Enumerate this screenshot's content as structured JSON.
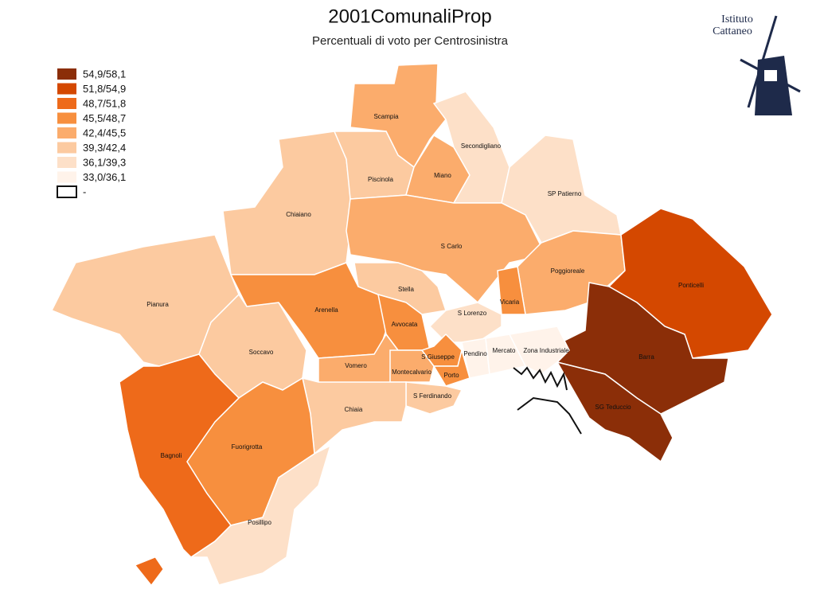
{
  "title": "2001ComunaliProp",
  "subtitle": "Percentuali di voto per Centrosinistra",
  "logo": {
    "line1": "Istituto",
    "line2": "Cattaneo"
  },
  "legend": [
    {
      "label": "54,9/58,1",
      "color": "#8b2e08"
    },
    {
      "label": "51,8/54,9",
      "color": "#d44800"
    },
    {
      "label": "48,7/51,8",
      "color": "#ee6a1a"
    },
    {
      "label": "45,5/48,7",
      "color": "#f78f3e"
    },
    {
      "label": "42,4/45,5",
      "color": "#fbac6c"
    },
    {
      "label": "39,3/42,4",
      "color": "#fccaa0"
    },
    {
      "label": "36,1/39,3",
      "color": "#fde0c8"
    },
    {
      "label": "33,0/36,1",
      "color": "#fff3ea"
    },
    {
      "label": "-",
      "color": "#ffffff"
    }
  ],
  "districts": [
    {
      "label": "Scampia",
      "color": "#fbac6c"
    },
    {
      "label": "Chiaiano",
      "color": "#fccaa0"
    },
    {
      "label": "Piscinola",
      "color": "#fccaa0"
    },
    {
      "label": "Miano",
      "color": "#fbac6c"
    },
    {
      "label": "Secondigliano",
      "color": "#fde0c8"
    },
    {
      "label": "SP Patierno",
      "color": "#fde0c8"
    },
    {
      "label": "S Carlo",
      "color": "#fbac6c"
    },
    {
      "label": "Poggioreale",
      "color": "#fbac6c"
    },
    {
      "label": "Vicaria",
      "color": "#f78f3e"
    },
    {
      "label": "Ponticelli",
      "color": "#d44800"
    },
    {
      "label": "Barra",
      "color": "#8b2e08"
    },
    {
      "label": "SG Teduccio",
      "color": "#8b2e08"
    },
    {
      "label": "Pianura",
      "color": "#fccaa0"
    },
    {
      "label": "Soccavo",
      "color": "#fccaa0"
    },
    {
      "label": "Arenella",
      "color": "#f78f3e"
    },
    {
      "label": "Stella",
      "color": "#fccaa0"
    },
    {
      "label": "Avvocata",
      "color": "#f78f3e"
    },
    {
      "label": "S Lorenzo",
      "color": "#fde0c8"
    },
    {
      "label": "Vomero",
      "color": "#fbac6c"
    },
    {
      "label": "Montecalvario",
      "color": "#fbac6c"
    },
    {
      "label": "S Giuseppe",
      "color": "#f78f3e"
    },
    {
      "label": "Porto",
      "color": "#f78f3e"
    },
    {
      "label": "Pendino",
      "color": "#fff3ea"
    },
    {
      "label": "Mercato",
      "color": "#fff3ea"
    },
    {
      "label": "Zona Industriale",
      "color": "#fff3ea"
    },
    {
      "label": "S Ferdinando",
      "color": "#fccaa0"
    },
    {
      "label": "Chiaia",
      "color": "#fccaa0"
    },
    {
      "label": "Fuorigrotta",
      "color": "#f78f3e"
    },
    {
      "label": "Bagnoli",
      "color": "#ee6a1a"
    },
    {
      "label": "Posillipo",
      "color": "#fde0c8"
    }
  ]
}
